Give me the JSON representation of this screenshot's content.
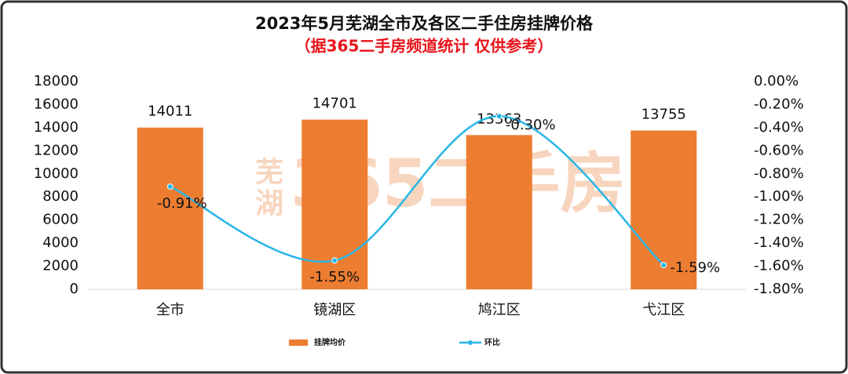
{
  "chart_data": {
    "type": "bar",
    "title": "2023年5月芜湖全市及各区二手住房挂牌价格",
    "subtitle": "（据365二手房频道统计 仅供参考）",
    "watermark": [
      "芜湖",
      "365二手房"
    ],
    "categories": [
      "全市",
      "镜湖区",
      "鸠江区",
      "弋江区"
    ],
    "series": [
      {
        "name": "挂牌均价",
        "type": "bar",
        "color": "#ED7D31",
        "values": [
          14011,
          14701,
          13363,
          13755
        ]
      },
      {
        "name": "环比",
        "type": "line",
        "axis": "y2",
        "color": "#29B6E8",
        "values": [
          -0.91,
          -1.55,
          -0.3,
          -1.59
        ],
        "value_labels": [
          "-0.91%",
          "-1.55%",
          "-0.30%",
          "-1.59%"
        ]
      }
    ],
    "ylim": [
      0,
      18000
    ],
    "yticks": [
      0,
      2000,
      4000,
      6000,
      8000,
      10000,
      12000,
      14000,
      16000,
      18000
    ],
    "y2lim": [
      -1.8,
      0
    ],
    "y2ticks": [
      {
        "value": 0,
        "label": "0.00%"
      },
      {
        "value": -0.2,
        "label": "-0.20%"
      },
      {
        "value": -0.4,
        "label": "-0.40%"
      },
      {
        "value": -0.6,
        "label": "-0.60%"
      },
      {
        "value": -0.8,
        "label": "-0.80%"
      },
      {
        "value": -1.0,
        "label": "-1.00%"
      },
      {
        "value": -1.2,
        "label": "-1.20%"
      },
      {
        "value": -1.4,
        "label": "-1.40%"
      },
      {
        "value": -1.6,
        "label": "-1.60%"
      },
      {
        "value": -1.8,
        "label": "-1.80%"
      }
    ],
    "grid": false,
    "legend": "bottom"
  }
}
